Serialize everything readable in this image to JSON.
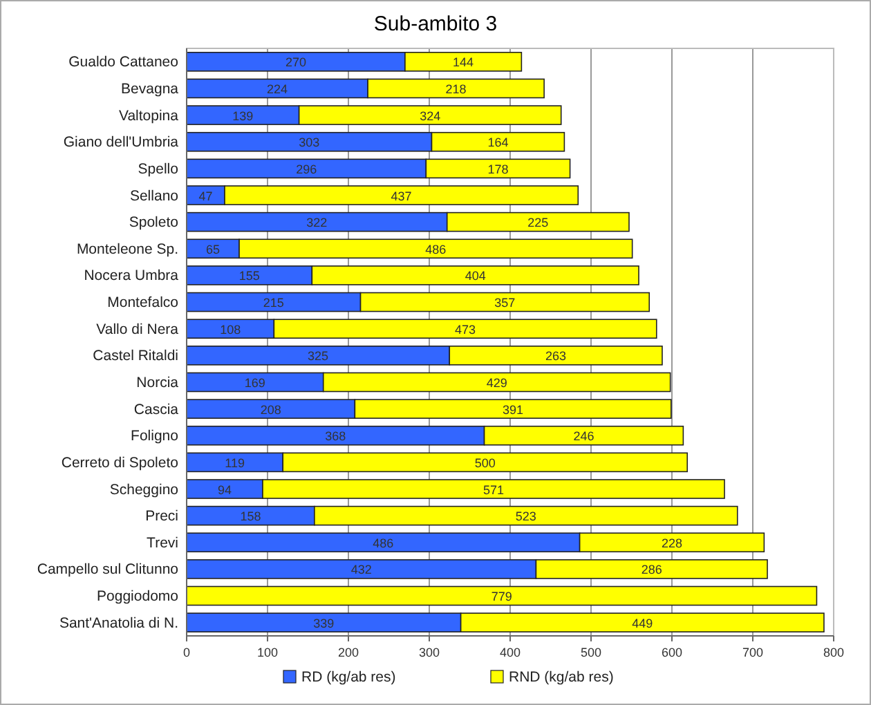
{
  "chart_data": {
    "type": "bar",
    "orientation": "horizontal",
    "stacked": true,
    "title": "Sub-ambito 3",
    "categories": [
      "Gualdo Cattaneo",
      "Bevagna",
      "Valtopina",
      "Giano dell'Umbria",
      "Spello",
      "Sellano",
      "Spoleto",
      "Monteleone Sp.",
      "Nocera Umbra",
      "Montefalco",
      "Vallo di Nera",
      "Castel Ritaldi",
      "Norcia",
      "Cascia",
      "Foligno",
      "Cerreto di Spoleto",
      "Scheggino",
      "Preci",
      "Trevi",
      "Campello sul Clitunno",
      "Poggiodomo",
      "Sant'Anatolia di N."
    ],
    "series": [
      {
        "name": "RD (kg/ab res)",
        "color": "#3366ff",
        "values": [
          270,
          224,
          139,
          303,
          296,
          47,
          322,
          65,
          155,
          215,
          108,
          325,
          169,
          208,
          368,
          119,
          94,
          158,
          486,
          432,
          null,
          339
        ],
        "value_labels": [
          "270",
          "224",
          "139",
          "303",
          "296",
          "47",
          "322",
          "65",
          "155",
          "215",
          "108",
          "325",
          "169",
          "208",
          "368",
          "119",
          "94",
          "158",
          "486",
          "432",
          null,
          "339"
        ]
      },
      {
        "name": "RND (kg/ab res)",
        "color": "#ffff00",
        "values": [
          144,
          218,
          324,
          164,
          178,
          437,
          225,
          486,
          404,
          357,
          473,
          263,
          429,
          391,
          246,
          500,
          571,
          523,
          228,
          286,
          779,
          449
        ],
        "value_labels": [
          "144",
          "218",
          "324",
          "164",
          "178",
          "437",
          "225",
          "486",
          "404",
          "357",
          "473",
          "263",
          "429",
          "391",
          "246",
          "500",
          "571",
          "523",
          "228",
          "286",
          "779",
          "449"
        ]
      }
    ],
    "xlim": [
      0,
      800
    ],
    "xticks": [
      0,
      100,
      200,
      300,
      400,
      500,
      600,
      700,
      800
    ],
    "grid": "x",
    "legend": "bottom"
  }
}
